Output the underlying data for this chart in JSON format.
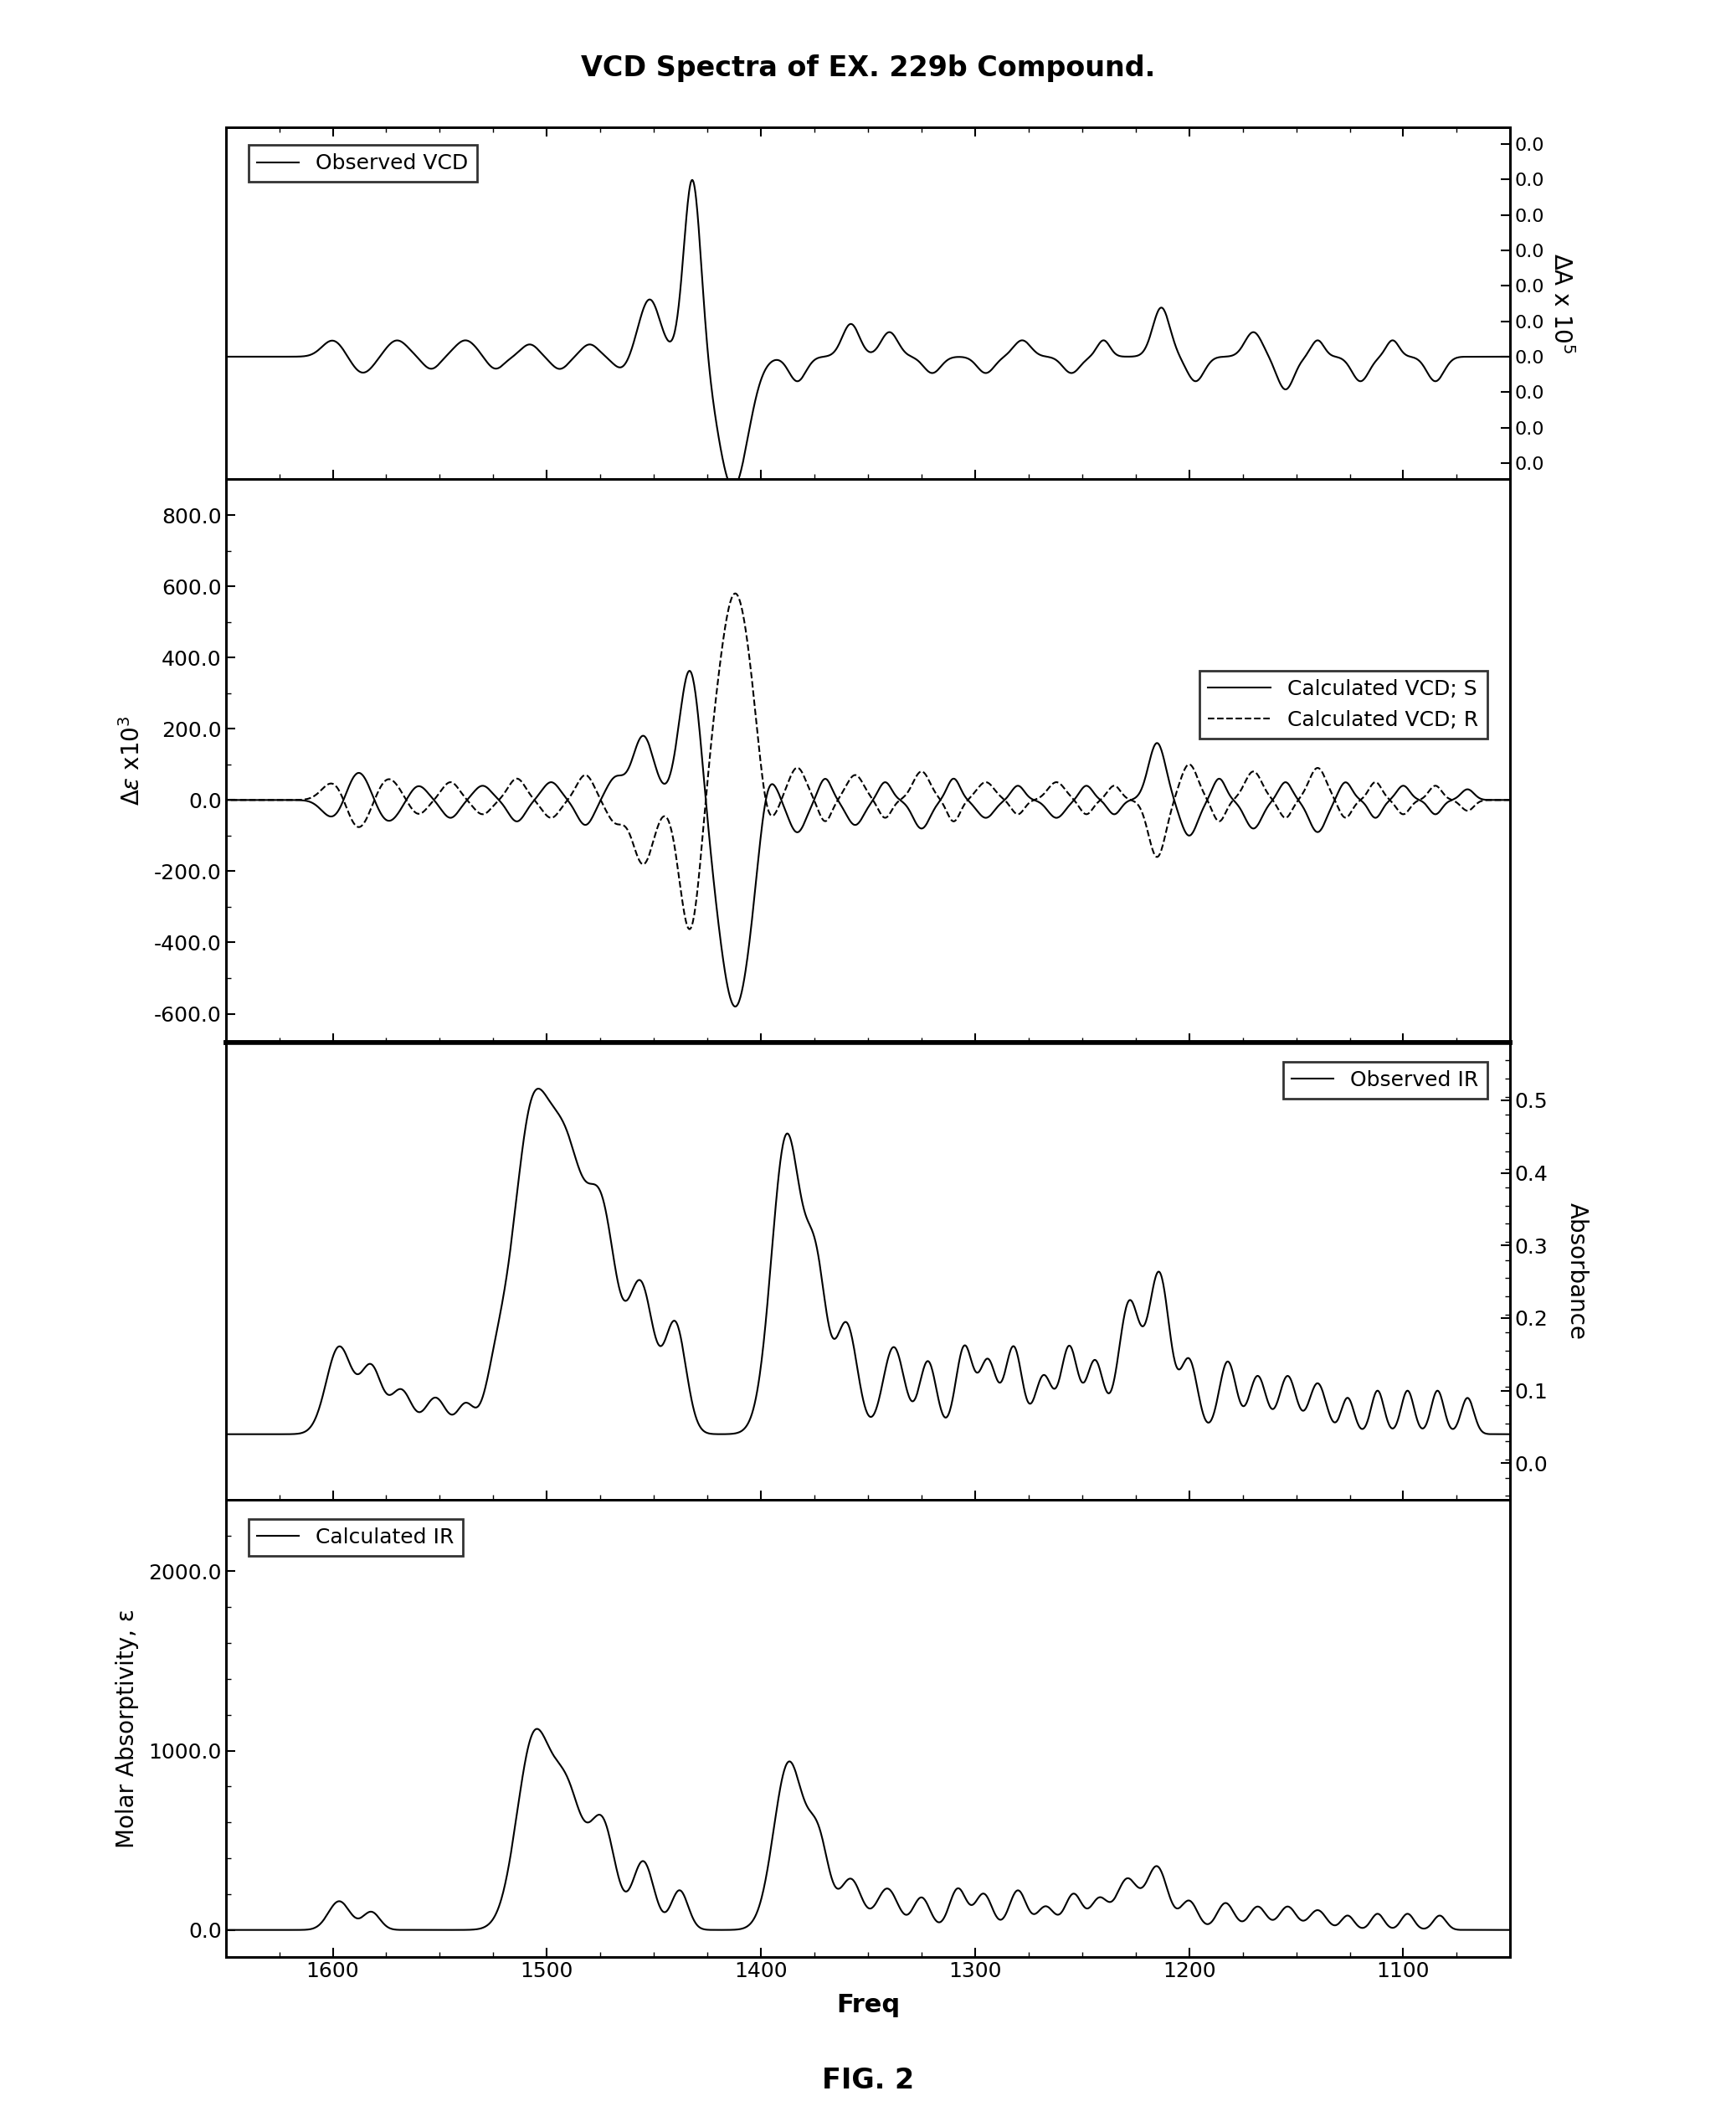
{
  "title": "VCD Spectra of EX. 229b Compound.",
  "fig_label": "FIG. 2",
  "x_min": 1050,
  "x_max": 1650,
  "xlabel": "Freq",
  "xticks": [
    1100,
    1200,
    1300,
    1400,
    1500,
    1600
  ],
  "background_color": "#ffffff",
  "line_color": "#000000",
  "panels": {
    "obs_vcd": {
      "ylim": [
        -0.08,
        0.35
      ],
      "ytick_vals": [
        0.0,
        0.0,
        0.0,
        0.0,
        0.0,
        0.0,
        0.0,
        0.0,
        0.0,
        0.0
      ],
      "ylabel": "ΔA x 10⁵",
      "legend": "Observed VCD",
      "legend_loc": "upper left"
    },
    "calc_vcd": {
      "ylim": [
        -680,
        900
      ],
      "ytick_positions": [
        -600.0,
        -400.0,
        -200.0,
        0.0,
        200.0,
        400.0,
        600.0,
        800.0
      ],
      "ytick_labels": [
        "-600.0",
        "-400.0",
        "-200.0",
        "0.0",
        "200.0",
        "400.0",
        "600.0",
        "800.0"
      ],
      "ylabel": "Δε x10³",
      "legend_s": "Calculated VCD; S",
      "legend_r": "Calculated VCD; R",
      "legend_loc": "center right"
    },
    "obs_ir": {
      "ylim": [
        -0.05,
        0.58
      ],
      "ytick_positions": [
        0.0,
        0.1,
        0.2,
        0.3,
        0.4,
        0.5
      ],
      "ytick_labels": [
        "0.0",
        "0.1",
        "0.2",
        "0.3",
        "0.4",
        "0.5"
      ],
      "ylabel": "Absorbance",
      "legend": "Observed IR",
      "legend_loc": "upper right"
    },
    "calc_ir": {
      "ylim": [
        -150,
        2400
      ],
      "ytick_positions": [
        0.0,
        1000.0,
        2000.0
      ],
      "ytick_labels": [
        "0.0",
        "1000.0",
        "2000.0"
      ],
      "ylabel": "Molar Absorptivity, ε",
      "legend": "Calculated IR",
      "legend_loc": "upper left"
    }
  }
}
